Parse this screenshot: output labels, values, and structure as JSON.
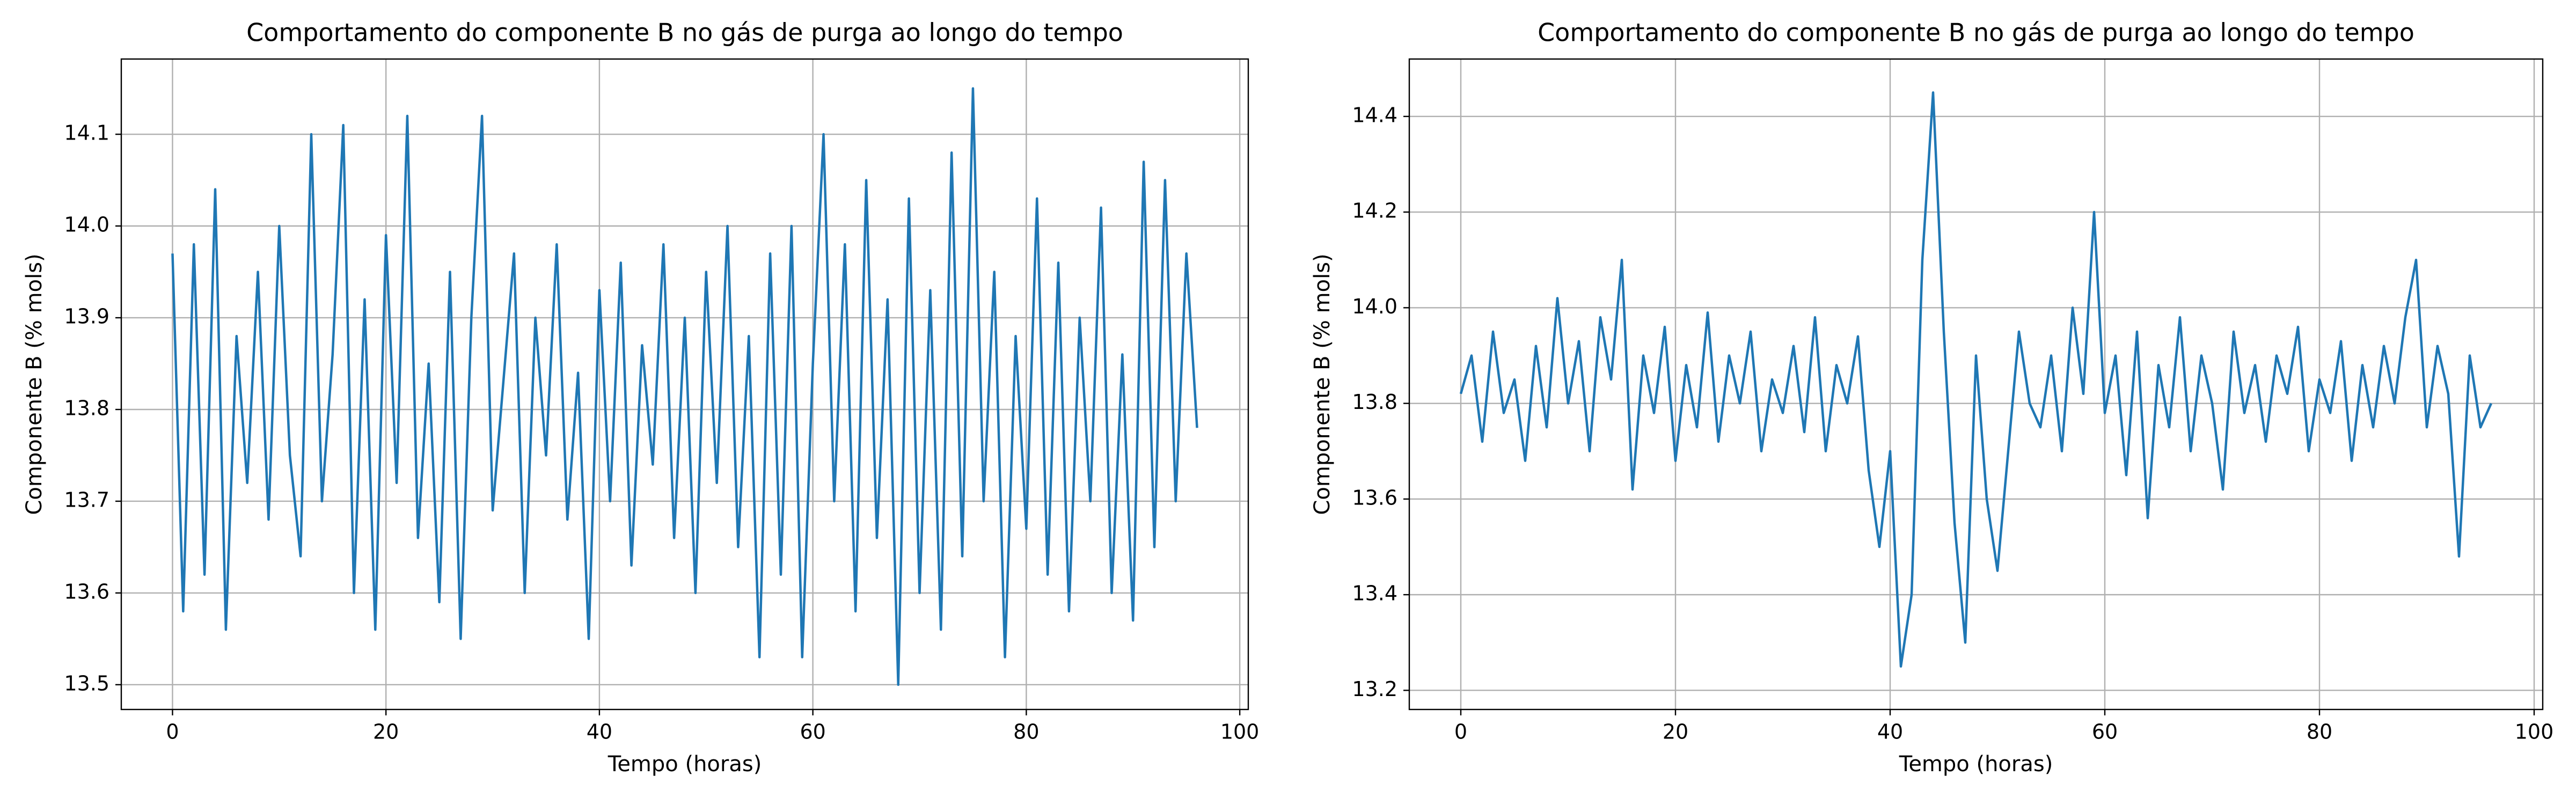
{
  "chart_data": [
    {
      "type": "line",
      "title": "Comportamento do componente B no gás de purga ao longo do tempo",
      "x_label": "Tempo (horas)",
      "y_label": "Componente B (% mols)",
      "xlim": [
        -4.8,
        100.8
      ],
      "xticks": [
        0,
        20,
        40,
        60,
        80,
        100
      ],
      "ylim": [
        13.473,
        14.182
      ],
      "yticks": [
        13.5,
        13.6,
        13.7,
        13.8,
        13.9,
        {
          "value": 14,
          "label": "14.0"
        },
        14.1
      ],
      "grid": true,
      "x": [
        0,
        1,
        2,
        3,
        4,
        5,
        6,
        7,
        8,
        9,
        10,
        11,
        12,
        13,
        14,
        15,
        16,
        17,
        18,
        19,
        20,
        21,
        22,
        23,
        24,
        25,
        26,
        27,
        28,
        29,
        30,
        31,
        32,
        33,
        34,
        35,
        36,
        37,
        38,
        39,
        40,
        41,
        42,
        43,
        44,
        45,
        46,
        47,
        48,
        49,
        50,
        51,
        52,
        53,
        54,
        55,
        56,
        57,
        58,
        59,
        60,
        61,
        62,
        63,
        64,
        65,
        66,
        67,
        68,
        69,
        70,
        71,
        72,
        73,
        74,
        75,
        76,
        77,
        78,
        79,
        80,
        81,
        82,
        83,
        84,
        85,
        86,
        87,
        88,
        89,
        90,
        91,
        92,
        93,
        94,
        95,
        96
      ],
      "series": [
        {
          "color": "#1f77b4",
          "values": [
            13.97,
            13.58,
            13.98,
            13.62,
            14.04,
            13.56,
            13.88,
            13.72,
            13.95,
            13.68,
            14.0,
            13.75,
            13.64,
            14.1,
            13.7,
            13.86,
            14.11,
            13.6,
            13.92,
            13.56,
            13.99,
            13.72,
            14.12,
            13.66,
            13.85,
            13.59,
            13.95,
            13.55,
            13.9,
            14.12,
            13.69,
            13.83,
            13.97,
            13.6,
            13.9,
            13.75,
            13.98,
            13.68,
            13.84,
            13.55,
            13.93,
            13.7,
            13.96,
            13.63,
            13.87,
            13.74,
            13.98,
            13.66,
            13.9,
            13.6,
            13.95,
            13.72,
            14.0,
            13.65,
            13.88,
            13.53,
            13.97,
            13.62,
            14.0,
            13.53,
            13.85,
            14.1,
            13.7,
            13.98,
            13.58,
            14.05,
            13.66,
            13.92,
            13.5,
            14.03,
            13.6,
            13.93,
            13.56,
            14.08,
            13.64,
            14.15,
            13.7,
            13.95,
            13.53,
            13.88,
            13.67,
            14.03,
            13.62,
            13.96,
            13.58,
            13.9,
            13.7,
            14.02,
            13.6,
            13.86,
            13.57,
            14.07,
            13.65,
            14.05,
            13.7,
            13.97,
            13.78
          ]
        }
      ]
    },
    {
      "type": "line",
      "title": "Comportamento do componente B no gás de purga ao longo do tempo",
      "x_label": "Tempo (horas)",
      "y_label": "Componente B (% mols)",
      "xlim": [
        -4.8,
        100.8
      ],
      "xticks": [
        0,
        20,
        40,
        60,
        80,
        100
      ],
      "ylim": [
        13.16,
        14.52
      ],
      "yticks": [
        13.2,
        13.4,
        13.6,
        13.8,
        {
          "value": 14,
          "label": "14.0"
        },
        14.2,
        14.4
      ],
      "grid": true,
      "x": [
        0,
        1,
        2,
        3,
        4,
        5,
        6,
        7,
        8,
        9,
        10,
        11,
        12,
        13,
        14,
        15,
        16,
        17,
        18,
        19,
        20,
        21,
        22,
        23,
        24,
        25,
        26,
        27,
        28,
        29,
        30,
        31,
        32,
        33,
        34,
        35,
        36,
        37,
        38,
        39,
        40,
        41,
        42,
        43,
        44,
        45,
        46,
        47,
        48,
        49,
        50,
        51,
        52,
        53,
        54,
        55,
        56,
        57,
        58,
        59,
        60,
        61,
        62,
        63,
        64,
        65,
        66,
        67,
        68,
        69,
        70,
        71,
        72,
        73,
        74,
        75,
        76,
        77,
        78,
        79,
        80,
        81,
        82,
        83,
        84,
        85,
        86,
        87,
        88,
        89,
        90,
        91,
        92,
        93,
        94,
        95,
        96
      ],
      "series": [
        {
          "color": "#1f77b4",
          "values": [
            13.82,
            13.9,
            13.72,
            13.95,
            13.78,
            13.85,
            13.68,
            13.92,
            13.75,
            14.02,
            13.8,
            13.93,
            13.7,
            13.98,
            13.85,
            14.1,
            13.62,
            13.9,
            13.78,
            13.96,
            13.68,
            13.88,
            13.75,
            13.99,
            13.72,
            13.9,
            13.8,
            13.95,
            13.7,
            13.85,
            13.78,
            13.92,
            13.74,
            13.98,
            13.7,
            13.88,
            13.8,
            13.94,
            13.66,
            13.5,
            13.7,
            13.25,
            13.4,
            14.1,
            14.45,
            13.95,
            13.55,
            13.3,
            13.9,
            13.6,
            13.45,
            13.7,
            13.95,
            13.8,
            13.75,
            13.9,
            13.7,
            14.0,
            13.82,
            14.2,
            13.78,
            13.9,
            13.65,
            13.95,
            13.56,
            13.88,
            13.75,
            13.98,
            13.7,
            13.9,
            13.8,
            13.62,
            13.95,
            13.78,
            13.88,
            13.72,
            13.9,
            13.82,
            13.96,
            13.7,
            13.85,
            13.78,
            13.93,
            13.68,
            13.88,
            13.75,
            13.92,
            13.8,
            13.98,
            14.1,
            13.75,
            13.92,
            13.82,
            13.48,
            13.9,
            13.75,
            13.8
          ]
        }
      ]
    }
  ]
}
